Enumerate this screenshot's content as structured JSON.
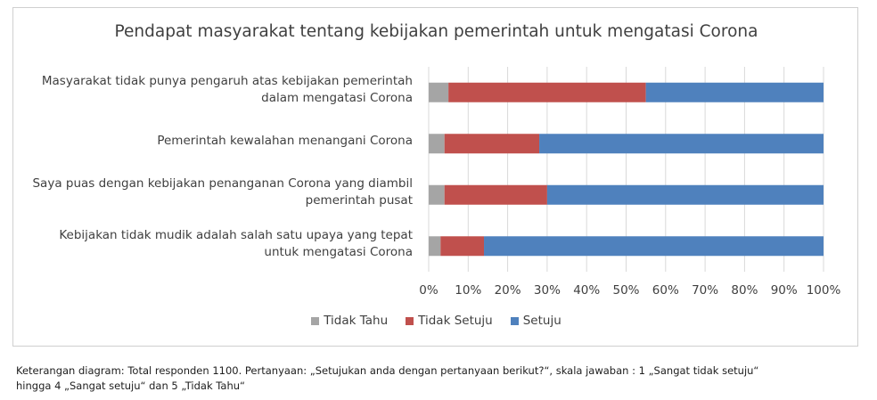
{
  "chart_data": {
    "type": "bar",
    "orientation": "horizontal",
    "stacked": true,
    "title": "Pendapat masyarakat tentang kebijakan pemerintah untuk mengatasi Corona",
    "categories": [
      [
        "Masyarakat tidak punya pengaruh atas kebijakan pemerintah",
        "dalam mengatasi Corona"
      ],
      [
        "Pemerintah kewalahan menangani Corona"
      ],
      [
        "Saya puas dengan kebijakan penanganan Corona yang diambil",
        "pemerintah pusat"
      ],
      [
        "Kebijakan tidak mudik adalah salah satu upaya yang tepat",
        "untuk mengatasi Corona"
      ]
    ],
    "series": [
      {
        "name": "Tidak Tahu",
        "color": "#a5a5a5",
        "values": [
          5,
          4,
          4,
          3
        ]
      },
      {
        "name": "Tidak Setuju",
        "color": "#c0504d",
        "values": [
          50,
          24,
          26,
          11
        ]
      },
      {
        "name": "Setuju",
        "color": "#4f81bd",
        "values": [
          45,
          72,
          70,
          86
        ]
      }
    ],
    "xlim": [
      0,
      100
    ],
    "xticks": [
      "0%",
      "10%",
      "20%",
      "30%",
      "40%",
      "50%",
      "60%",
      "70%",
      "80%",
      "90%",
      "100%"
    ],
    "grid": true,
    "legend_position": "bottom"
  },
  "note": {
    "line1": "Keterangan diagram: Total responden 1100. Pertanyaan: „Setujukan anda dengan pertanyaan berikut?“, skala jawaban : 1 „Sangat tidak setuju“",
    "line2": "hingga 4 „Sangat setuju“ dan 5 „Tidak Tahu“"
  }
}
